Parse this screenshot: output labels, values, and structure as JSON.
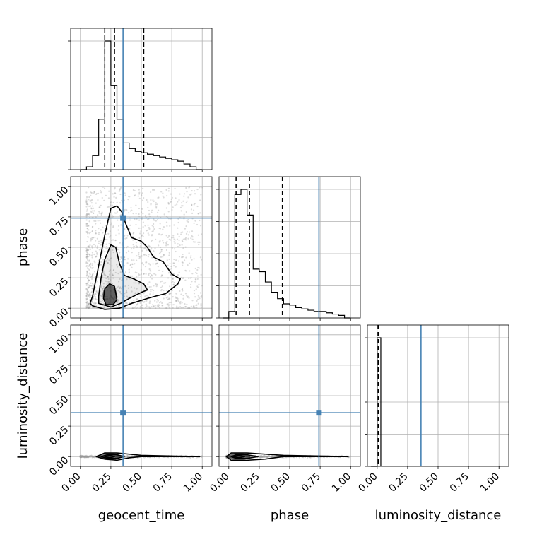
{
  "chart_data": {
    "type": "corner",
    "parameters": [
      "geocent_time",
      "phase",
      "luminosity_distance"
    ],
    "axis_labels": {
      "x": [
        "geocent_time",
        "phase",
        "luminosity_distance"
      ],
      "y_left": [
        "",
        "phase",
        "luminosity_distance"
      ]
    },
    "tick_values": [
      0.0,
      0.25,
      0.5,
      0.75,
      1.0
    ],
    "tick_labels": [
      "0.00",
      "0.25",
      "0.50",
      "0.75",
      "1.00"
    ],
    "xlim": [
      -0.08,
      1.08
    ],
    "truths": {
      "geocent_time": 0.35,
      "phase": 0.74,
      "luminosity_distance": 0.36
    },
    "truth_color": "#4682b4",
    "grid": true,
    "marginals": [
      {
        "parameter": "geocent_time",
        "quantiles": [
          0.2,
          0.28,
          0.52
        ],
        "bin_edges": [
          0.0,
          0.05,
          0.1,
          0.15,
          0.2,
          0.25,
          0.3,
          0.35,
          0.4,
          0.45,
          0.5,
          0.55,
          0.6,
          0.65,
          0.7,
          0.75,
          0.8,
          0.85,
          0.9,
          0.95,
          1.0
        ],
        "counts": [
          0.0,
          0.02,
          0.1,
          0.36,
          0.92,
          0.6,
          0.36,
          0.19,
          0.15,
          0.13,
          0.12,
          0.11,
          0.1,
          0.09,
          0.08,
          0.07,
          0.06,
          0.04,
          0.02,
          0.0
        ]
      },
      {
        "parameter": "phase",
        "quantiles": [
          0.06,
          0.17,
          0.44
        ],
        "bin_edges": [
          -0.05,
          0.0,
          0.05,
          0.1,
          0.15,
          0.2,
          0.25,
          0.3,
          0.35,
          0.4,
          0.45,
          0.5,
          0.55,
          0.6,
          0.65,
          0.7,
          0.75,
          0.8,
          0.85,
          0.9,
          0.95,
          1.0
        ],
        "counts": [
          0.0,
          0.05,
          0.96,
          1.0,
          0.8,
          0.38,
          0.36,
          0.28,
          0.2,
          0.15,
          0.11,
          0.1,
          0.08,
          0.07,
          0.06,
          0.05,
          0.05,
          0.04,
          0.03,
          0.02,
          0.0
        ]
      },
      {
        "parameter": "luminosity_distance",
        "quantiles": [
          0.0,
          0.0,
          0.01
        ],
        "bin_edges": [
          -0.05,
          0.0,
          0.03
        ],
        "counts": [
          0.0,
          1.0
        ]
      }
    ],
    "joint": [
      {
        "x": "geocent_time",
        "y": "phase",
        "scatter_region": {
          "x": [
            0.05,
            1.0
          ],
          "y": [
            0.0,
            1.0
          ]
        },
        "contours": [
          [
            [
              0.1,
              0.02
            ],
            [
              0.2,
              -0.01
            ],
            [
              0.32,
              0.0
            ],
            [
              0.42,
              0.04
            ],
            [
              0.55,
              0.08
            ],
            [
              0.62,
              0.1
            ],
            [
              0.7,
              0.12
            ],
            [
              0.8,
              0.2
            ],
            [
              0.82,
              0.24
            ],
            [
              0.75,
              0.28
            ],
            [
              0.68,
              0.38
            ],
            [
              0.6,
              0.42
            ],
            [
              0.55,
              0.5
            ],
            [
              0.5,
              0.55
            ],
            [
              0.42,
              0.58
            ],
            [
              0.37,
              0.7
            ],
            [
              0.34,
              0.79
            ],
            [
              0.3,
              0.84
            ],
            [
              0.25,
              0.82
            ],
            [
              0.2,
              0.6
            ],
            [
              0.14,
              0.3
            ],
            [
              0.1,
              0.1
            ],
            [
              0.08,
              0.04
            ]
          ],
          [
            [
              0.15,
              0.04
            ],
            [
              0.25,
              0.01
            ],
            [
              0.33,
              0.04
            ],
            [
              0.4,
              0.08
            ],
            [
              0.5,
              0.13
            ],
            [
              0.55,
              0.15
            ],
            [
              0.52,
              0.2
            ],
            [
              0.44,
              0.24
            ],
            [
              0.36,
              0.27
            ],
            [
              0.32,
              0.37
            ],
            [
              0.29,
              0.5
            ],
            [
              0.25,
              0.52
            ],
            [
              0.2,
              0.4
            ],
            [
              0.17,
              0.25
            ],
            [
              0.15,
              0.1
            ]
          ],
          [
            [
              0.19,
              0.08
            ],
            [
              0.21,
              0.03
            ],
            [
              0.27,
              0.03
            ],
            [
              0.3,
              0.07
            ],
            [
              0.28,
              0.18
            ],
            [
              0.24,
              0.2
            ],
            [
              0.2,
              0.16
            ]
          ]
        ]
      },
      {
        "x": "geocent_time",
        "y": "luminosity_distance",
        "scatter_region": {
          "x": [
            0.0,
            1.0
          ],
          "y": [
            -0.01,
            0.01
          ]
        },
        "contours": [
          [
            [
              0.13,
              0.0
            ],
            [
              0.2,
              -0.02
            ],
            [
              0.3,
              -0.03
            ],
            [
              0.4,
              -0.01
            ],
            [
              0.5,
              0.0
            ],
            [
              0.98,
              0.0
            ],
            [
              0.5,
              0.01
            ],
            [
              0.4,
              0.02
            ],
            [
              0.3,
              0.03
            ],
            [
              0.2,
              0.03
            ]
          ],
          [
            [
              0.17,
              0.0
            ],
            [
              0.22,
              -0.015
            ],
            [
              0.3,
              -0.015
            ],
            [
              0.36,
              0.0
            ],
            [
              0.3,
              0.015
            ],
            [
              0.22,
              0.015
            ]
          ],
          [
            [
              0.2,
              0.0
            ],
            [
              0.24,
              -0.01
            ],
            [
              0.28,
              0.0
            ],
            [
              0.24,
              0.01
            ]
          ]
        ]
      },
      {
        "x": "phase",
        "y": "luminosity_distance",
        "scatter_region": {
          "x": [
            -0.02,
            1.0
          ],
          "y": [
            -0.01,
            0.01
          ]
        },
        "contours": [
          [
            [
              -0.02,
              0.0
            ],
            [
              0.02,
              -0.03
            ],
            [
              0.15,
              -0.03
            ],
            [
              0.3,
              -0.02
            ],
            [
              0.45,
              0.0
            ],
            [
              0.98,
              0.0
            ],
            [
              0.45,
              0.01
            ],
            [
              0.3,
              0.02
            ],
            [
              0.15,
              0.03
            ],
            [
              0.02,
              0.03
            ]
          ],
          [
            [
              0.02,
              0.0
            ],
            [
              0.06,
              -0.015
            ],
            [
              0.15,
              -0.015
            ],
            [
              0.24,
              0.0
            ],
            [
              0.15,
              0.015
            ],
            [
              0.06,
              0.015
            ]
          ],
          [
            [
              0.04,
              0.0
            ],
            [
              0.08,
              -0.01
            ],
            [
              0.13,
              0.0
            ],
            [
              0.08,
              0.01
            ]
          ]
        ]
      }
    ]
  }
}
